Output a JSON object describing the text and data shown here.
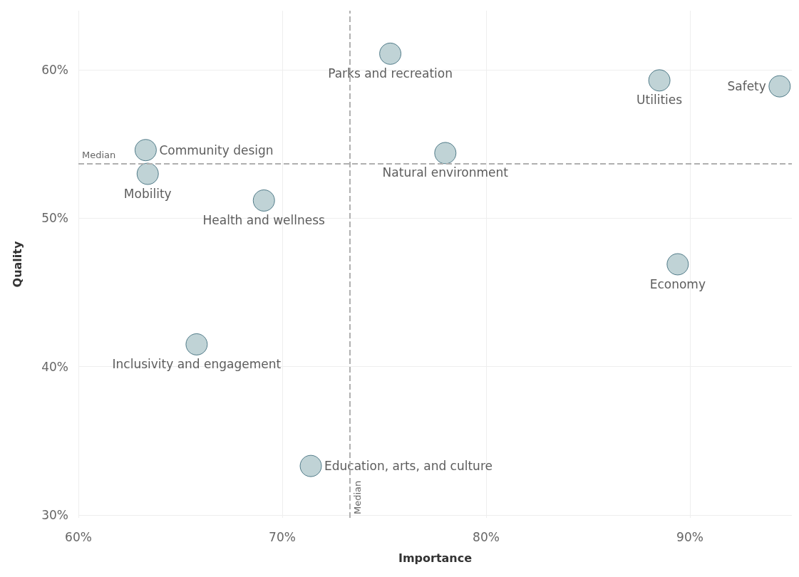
{
  "chart_data": {
    "type": "scatter",
    "xlabel": "Importance",
    "ylabel": "Quality",
    "x": [
      63.3,
      63.4,
      69.1,
      65.8,
      71.4,
      75.3,
      78.0,
      88.5,
      94.4,
      89.4
    ],
    "values": [
      54.6,
      53.0,
      51.2,
      41.5,
      33.3,
      61.1,
      54.4,
      59.3,
      58.9,
      46.9
    ],
    "color": "#b0c8cc",
    "marker": "circle",
    "grid": true,
    "xlim": [
      60,
      95
    ],
    "ylim": [
      29.8,
      64
    ],
    "xticks": [
      {
        "value": 60,
        "label": "60%"
      },
      {
        "value": 70,
        "label": "70%"
      },
      {
        "value": 80,
        "label": "80%"
      },
      {
        "value": 90,
        "label": "90%"
      }
    ],
    "yticks": [
      {
        "value": 30,
        "label": "30%"
      },
      {
        "value": 40,
        "label": "40%"
      },
      {
        "value": 50,
        "label": "50%"
      },
      {
        "value": 60,
        "label": "60%"
      }
    ],
    "ref_lines": [
      {
        "axis": "x",
        "value": 73.3,
        "label": "Median",
        "color": "#b0b0b0",
        "line_style": "dashed"
      },
      {
        "axis": "y",
        "value": 53.7,
        "label": "Median",
        "color": "#b0b0b0",
        "line_style": "dashed"
      }
    ],
    "annotations": [
      {
        "text": "Community design",
        "x": 63.3,
        "y": 54.6
      },
      {
        "text": "Mobility",
        "x": 63.4,
        "y": 53.0
      },
      {
        "text": "Health and wellness",
        "x": 69.1,
        "y": 51.2
      },
      {
        "text": "Inclusivity and engagement",
        "x": 65.8,
        "y": 41.5
      },
      {
        "text": "Education, arts, and culture",
        "x": 71.4,
        "y": 33.3
      },
      {
        "text": "Parks and recreation",
        "x": 75.3,
        "y": 61.1
      },
      {
        "text": "Natural environment",
        "x": 78.0,
        "y": 54.4
      },
      {
        "text": "Utilities",
        "x": 88.5,
        "y": 59.3
      },
      {
        "text": "Safety",
        "x": 94.4,
        "y": 58.9
      },
      {
        "text": "Economy",
        "x": 89.4,
        "y": 46.9
      }
    ]
  }
}
